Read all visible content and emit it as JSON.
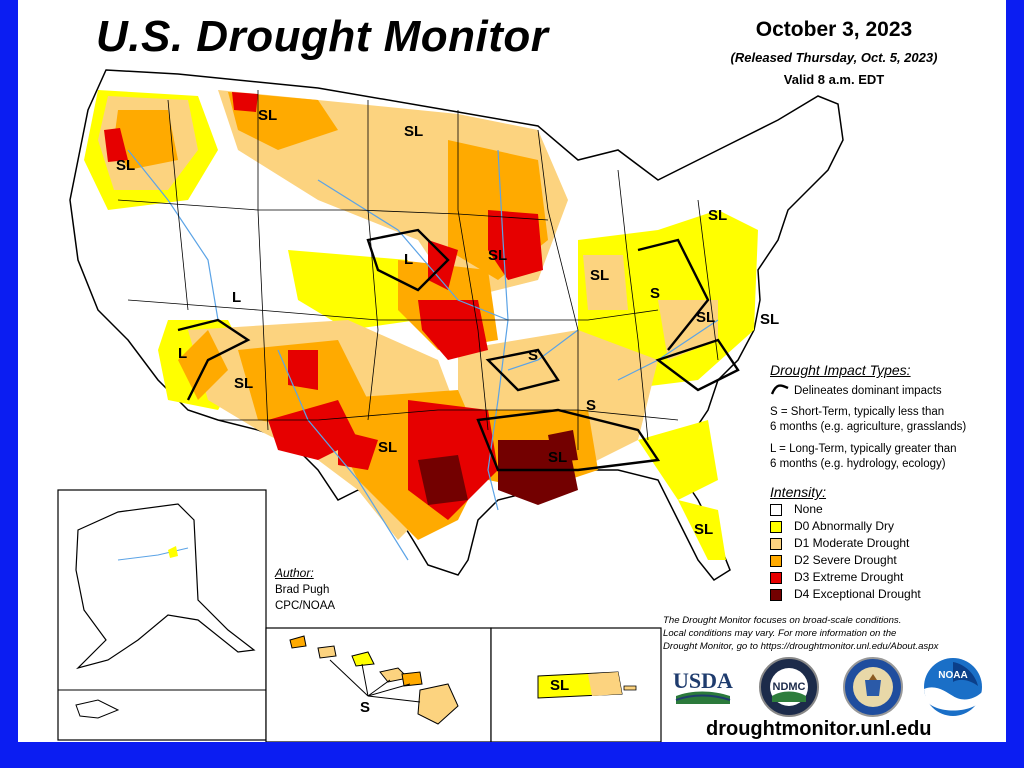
{
  "header": {
    "title": "U.S. Drought Monitor",
    "date": "October 3, 2023",
    "released": "(Released Thursday, Oct. 5, 2023)",
    "valid": "Valid 8 a.m. EDT"
  },
  "impact_types": {
    "title": "Drought Impact Types:",
    "delineates": "Delineates dominant impacts",
    "short_term_1": "S = Short-Term, typically less than",
    "short_term_2": "6 months (e.g. agriculture, grasslands)",
    "long_term_1": "L = Long-Term, typically greater than",
    "long_term_2": "6 months (e.g. hydrology, ecology)"
  },
  "intensity": {
    "title": "Intensity:",
    "items": [
      {
        "label": "None",
        "color": "#ffffff"
      },
      {
        "label": "D0 Abnormally Dry",
        "color": "#ffff00"
      },
      {
        "label": "D1 Moderate Drought",
        "color": "#fcd37f"
      },
      {
        "label": "D2 Severe Drought",
        "color": "#ffaa00"
      },
      {
        "label": "D3 Extreme Drought",
        "color": "#e60000"
      },
      {
        "label": "D4 Exceptional Drought",
        "color": "#730000"
      }
    ]
  },
  "author": {
    "heading": "Author:",
    "name": "Brad Pugh",
    "org": "CPC/NOAA"
  },
  "note": {
    "line1": "The Drought Monitor focuses on broad-scale conditions.",
    "line2": "Local conditions may vary. For more information on the",
    "line3": "Drought Monitor, go to https://droughtmonitor.unl.edu/About.aspx"
  },
  "map_labels": {
    "sl": "SL",
    "s": "S",
    "l": "L"
  },
  "logos": {
    "usda": "USDA",
    "ndmc": "NDMC",
    "noaa": "NOAA"
  },
  "url": "droughtmonitor.unl.edu"
}
